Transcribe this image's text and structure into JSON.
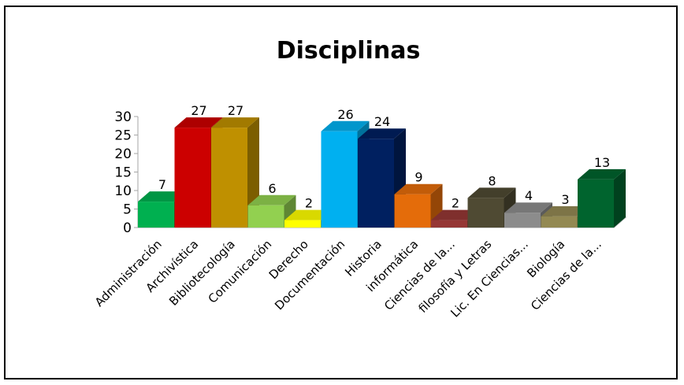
{
  "chart_data": {
    "type": "bar",
    "style": "3d-column",
    "title": "Disciplinas",
    "xlabel": "",
    "ylabel": "",
    "ylim": [
      0,
      30
    ],
    "yticks": [
      0,
      5,
      10,
      15,
      20,
      25,
      30
    ],
    "grid": false,
    "legend": "none",
    "categories": [
      "Administración",
      "Archivística",
      "Bibliotecología",
      "Comunicación",
      "Derecho",
      "Documentación",
      "Historia",
      "informática",
      "Ciencias de la...",
      "filosofía y Letras",
      "Lic. En Ciencias...",
      "Biología",
      "Ciencias de la..."
    ],
    "values": [
      7,
      27,
      27,
      6,
      2,
      26,
      24,
      9,
      2,
      8,
      4,
      3,
      13
    ],
    "colors": [
      "#00b050",
      "#cc0000",
      "#bf9000",
      "#92d050",
      "#ffff00",
      "#00b0f0",
      "#002060",
      "#e46c0a",
      "#953735",
      "#4f4a33",
      "#8c8c8c",
      "#938953",
      "#00642e"
    ]
  }
}
